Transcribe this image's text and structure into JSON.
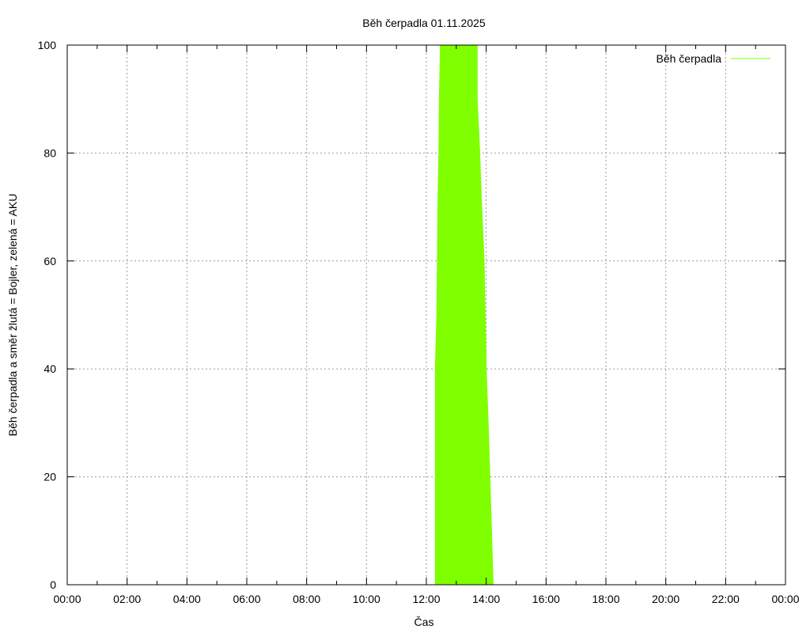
{
  "chart_data": {
    "type": "area",
    "title": "Běh čerpadla 01.11.2025",
    "xlabel": "Čas",
    "ylabel": "Běh čerpadla a směr žlutá = Bojler, zelená = AKU",
    "xlim": [
      "00:00",
      "24:00"
    ],
    "ylim": [
      0,
      100
    ],
    "x_ticks": [
      "00:00",
      "02:00",
      "04:00",
      "06:00",
      "08:00",
      "10:00",
      "12:00",
      "14:00",
      "16:00",
      "18:00",
      "20:00",
      "22:00",
      "00:00"
    ],
    "y_ticks": [
      0,
      20,
      40,
      60,
      80,
      100
    ],
    "grid": true,
    "legend_position": "top-right",
    "series": [
      {
        "name": "Běh čerpadla",
        "color": "#7fff00",
        "points": [
          {
            "x": "12:18",
            "y": 0
          },
          {
            "x": "12:18",
            "y": 40
          },
          {
            "x": "12:21",
            "y": 50
          },
          {
            "x": "12:22",
            "y": 60
          },
          {
            "x": "12:23",
            "y": 70
          },
          {
            "x": "12:25",
            "y": 80
          },
          {
            "x": "12:26",
            "y": 90
          },
          {
            "x": "12:28",
            "y": 100
          },
          {
            "x": "13:42",
            "y": 100
          },
          {
            "x": "13:42",
            "y": 90
          },
          {
            "x": "13:47",
            "y": 80
          },
          {
            "x": "13:51",
            "y": 70
          },
          {
            "x": "13:56",
            "y": 60
          },
          {
            "x": "13:58",
            "y": 50
          },
          {
            "x": "14:00",
            "y": 40
          },
          {
            "x": "14:04",
            "y": 30
          },
          {
            "x": "14:14",
            "y": 0
          }
        ]
      }
    ]
  }
}
